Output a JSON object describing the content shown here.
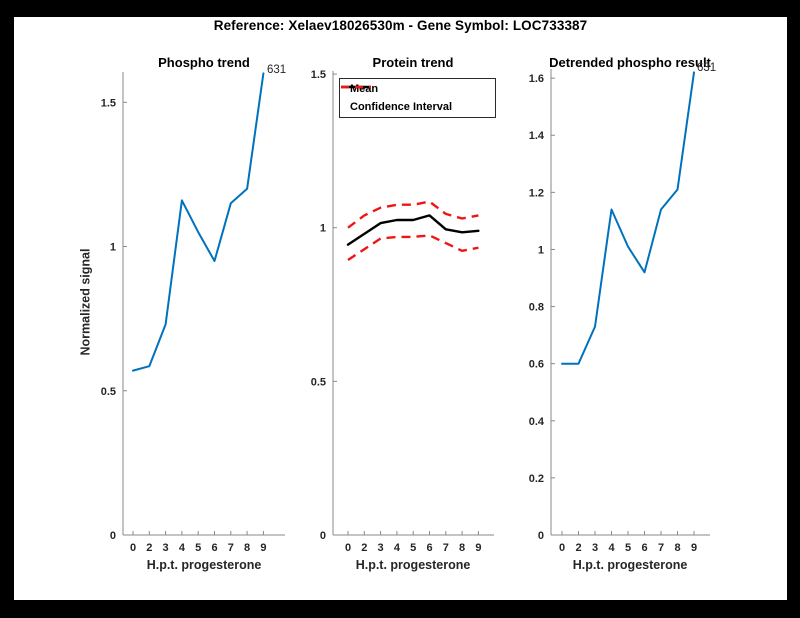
{
  "figure": {
    "title": "Reference:  Xelaev18026530m - Gene Symbol:  LOC733387",
    "background_color": "#000000",
    "canvas_color": "#ffffff",
    "shared_ylabel": "Normalized signal",
    "shared_xlabel": "H.p.t. progesterone"
  },
  "colors": {
    "blue_line": "#0072bd",
    "mean_line": "#000000",
    "ci_line": "#f01515",
    "axis": "#888888",
    "tick_text": "#262626"
  },
  "chart_data": [
    {
      "type": "line",
      "title": "Phospho trend",
      "xlabel": "H.p.t. progesterone",
      "ylabel": "Normalized signal",
      "x_ticklabels": [
        "0",
        "2",
        "3",
        "4",
        "5",
        "6",
        "7",
        "8",
        "9"
      ],
      "y_ticks": [
        0,
        0.5,
        1,
        1.5
      ],
      "y_ticklabels": [
        "0",
        "0.5",
        "1",
        "1.5"
      ],
      "ylim": [
        0,
        1.605
      ],
      "grid": false,
      "series": [
        {
          "name": "Phospho",
          "color": "#0072bd",
          "style": "solid",
          "values": [
            0.57,
            0.585,
            0.73,
            1.16,
            1.05,
            0.95,
            1.15,
            1.2,
            1.6
          ]
        }
      ],
      "annotation": {
        "text": "631"
      }
    },
    {
      "type": "line",
      "title": "Protein trend",
      "xlabel": "H.p.t. progesterone",
      "x_ticklabels": [
        "0",
        "2",
        "3",
        "4",
        "5",
        "6",
        "7",
        "8",
        "9"
      ],
      "y_ticks": [
        0,
        0.5,
        1,
        1.5
      ],
      "y_ticklabels": [
        "0",
        "0.5",
        "1",
        "1.5"
      ],
      "ylim": [
        0,
        1.51
      ],
      "grid": false,
      "legend": {
        "position": "top-left",
        "entries": [
          {
            "label": "Mean",
            "color": "#000000",
            "style": "solid"
          },
          {
            "label": "Confidence Interval",
            "color": "#f01515",
            "style": "dashed"
          }
        ]
      },
      "series": [
        {
          "name": "Mean",
          "color": "#000000",
          "style": "solid",
          "values": [
            0.945,
            0.98,
            1.015,
            1.025,
            1.025,
            1.04,
            0.995,
            0.985,
            0.99
          ]
        },
        {
          "name": "CI upper",
          "color": "#f01515",
          "style": "dashed",
          "values": [
            1.0,
            1.04,
            1.065,
            1.075,
            1.075,
            1.085,
            1.045,
            1.03,
            1.04
          ]
        },
        {
          "name": "CI lower",
          "color": "#f01515",
          "style": "dashed",
          "values": [
            0.895,
            0.93,
            0.965,
            0.97,
            0.97,
            0.975,
            0.95,
            0.925,
            0.935
          ]
        }
      ]
    },
    {
      "type": "line",
      "title": "Detrended phospho result",
      "xlabel": "H.p.t. progesterone",
      "x_ticklabels": [
        "0",
        "2",
        "3",
        "4",
        "5",
        "6",
        "7",
        "8",
        "9"
      ],
      "y_ticks": [
        0,
        0.2,
        0.4,
        0.6,
        0.8,
        1,
        1.2,
        1.4,
        1.6
      ],
      "y_ticklabels": [
        "0",
        "0.2",
        "0.4",
        "0.6",
        "0.8",
        "1",
        "1.2",
        "1.4",
        "1.6"
      ],
      "ylim": [
        0,
        1.632
      ],
      "grid": false,
      "series": [
        {
          "name": "Detrended phospho",
          "color": "#0072bd",
          "style": "solid",
          "values": [
            0.6,
            0.6,
            0.73,
            1.14,
            1.01,
            0.92,
            1.14,
            1.21,
            1.62
          ]
        }
      ],
      "annotation": {
        "text": "631"
      }
    }
  ]
}
